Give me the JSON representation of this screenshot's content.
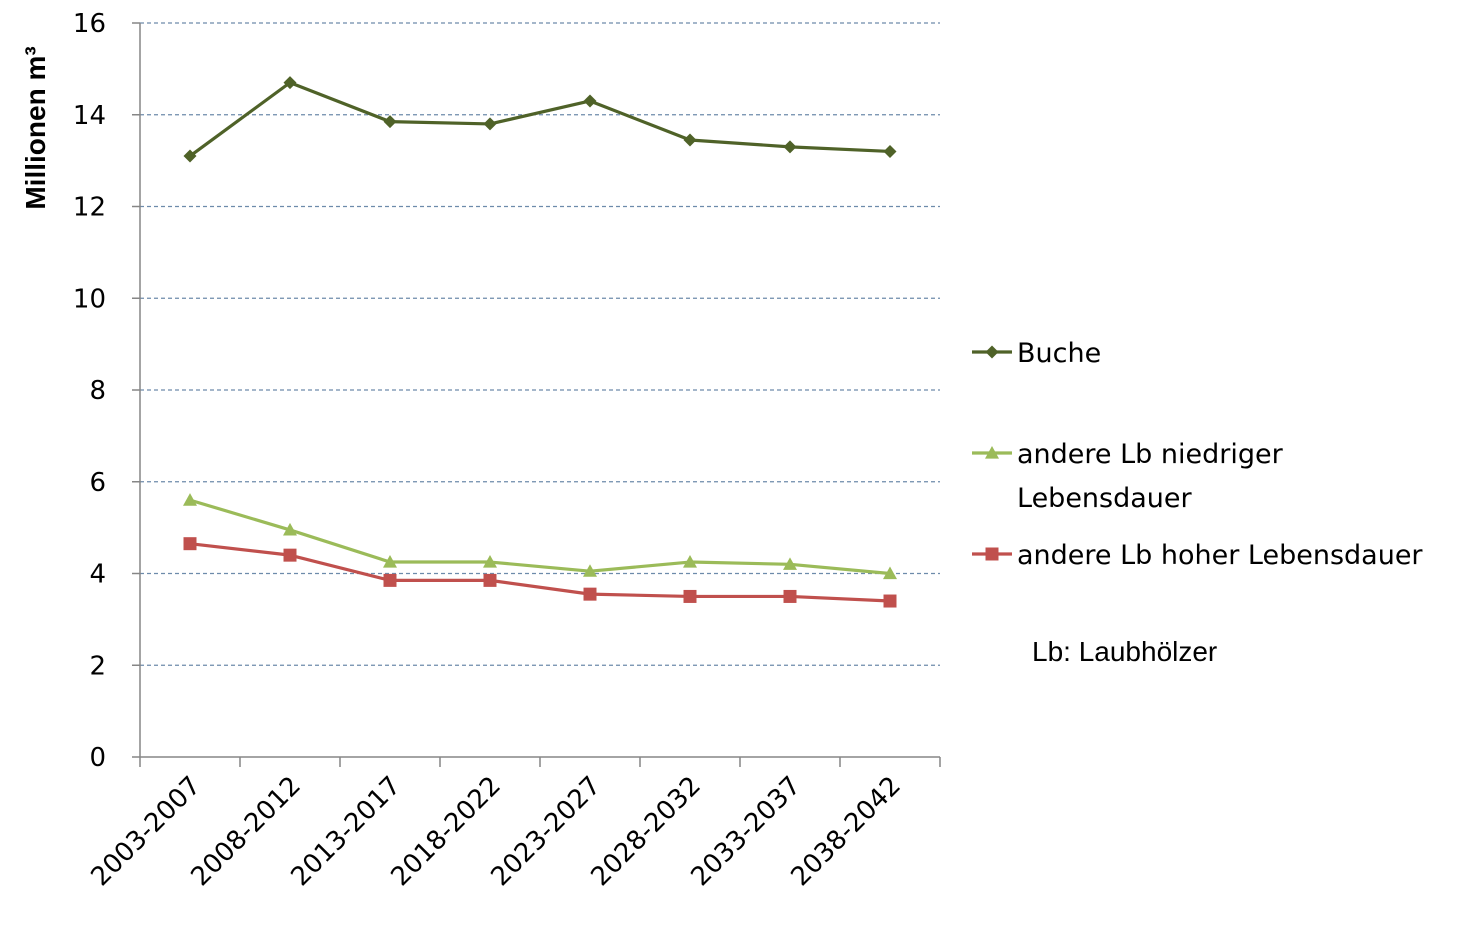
{
  "chart_data": {
    "type": "line",
    "ylabel": "Millionen m³",
    "xlabel": "",
    "title": "",
    "ylim": [
      0,
      16
    ],
    "yticks": [
      "0",
      "2",
      "4",
      "6",
      "8",
      "10",
      "12",
      "14",
      "16"
    ],
    "grid": "horizontal dashed",
    "legend_position": "right",
    "categories": [
      "2003-2007",
      "2008-2012",
      "2013-2017",
      "2018-2022",
      "2023-2027",
      "2028-2032",
      "2033-2037",
      "2038-2042"
    ],
    "series": [
      {
        "name": "Buche",
        "color": "#4f6228",
        "marker": "diamond",
        "values": [
          13.1,
          14.7,
          13.85,
          13.8,
          14.3,
          13.45,
          13.3,
          13.2
        ]
      },
      {
        "name": "andere Lb niedriger Lebensdauer",
        "name_lines": [
          "andere Lb niedriger",
          "Lebensdauer"
        ],
        "color": "#9bbb59",
        "marker": "triangle",
        "values": [
          5.6,
          4.95,
          4.25,
          4.25,
          4.05,
          4.25,
          4.2,
          4.0
        ]
      },
      {
        "name": "andere Lb hoher Lebensdauer",
        "color": "#c0504d",
        "marker": "square",
        "values": [
          4.65,
          4.4,
          3.85,
          3.85,
          3.55,
          3.5,
          3.5,
          3.4
        ]
      }
    ],
    "annotations": [
      "Lb: Laubhölzer"
    ]
  }
}
